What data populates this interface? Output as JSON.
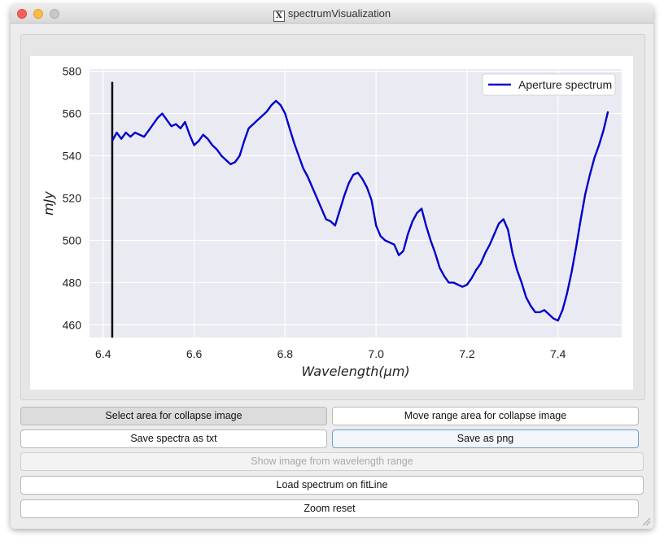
{
  "window": {
    "title": "spectrumVisualization"
  },
  "chart_data": {
    "type": "line",
    "xlabel": "Wavelength(μm)",
    "ylabel": "mJy",
    "xlim": [
      6.37,
      7.54
    ],
    "ylim": [
      454,
      581
    ],
    "xticks": [
      "6.4",
      "6.6",
      "6.8",
      "7.0",
      "7.2",
      "7.4"
    ],
    "yticks": [
      "460",
      "480",
      "500",
      "520",
      "540",
      "560",
      "580"
    ],
    "grid": true,
    "legend": "top-right",
    "series": [
      {
        "name": "Aperture spectrum",
        "color": "#0000cc",
        "x": [
          6.42,
          6.43,
          6.44,
          6.45,
          6.46,
          6.47,
          6.48,
          6.49,
          6.5,
          6.51,
          6.52,
          6.53,
          6.54,
          6.55,
          6.56,
          6.57,
          6.58,
          6.59,
          6.6,
          6.61,
          6.62,
          6.63,
          6.64,
          6.65,
          6.66,
          6.67,
          6.68,
          6.69,
          6.7,
          6.71,
          6.72,
          6.73,
          6.74,
          6.75,
          6.76,
          6.77,
          6.78,
          6.79,
          6.8,
          6.81,
          6.82,
          6.83,
          6.84,
          6.85,
          6.86,
          6.87,
          6.88,
          6.89,
          6.9,
          6.91,
          6.92,
          6.93,
          6.94,
          6.95,
          6.96,
          6.97,
          6.98,
          6.99,
          7.0,
          7.01,
          7.02,
          7.03,
          7.04,
          7.05,
          7.06,
          7.07,
          7.08,
          7.09,
          7.1,
          7.11,
          7.12,
          7.13,
          7.14,
          7.15,
          7.16,
          7.17,
          7.18,
          7.19,
          7.2,
          7.21,
          7.22,
          7.23,
          7.24,
          7.25,
          7.26,
          7.27,
          7.28,
          7.29,
          7.3,
          7.31,
          7.32,
          7.33,
          7.34,
          7.35,
          7.36,
          7.37,
          7.38,
          7.39,
          7.4,
          7.41,
          7.42,
          7.43,
          7.44,
          7.45,
          7.46,
          7.47,
          7.48,
          7.49,
          7.5,
          7.51
        ],
        "values": [
          547,
          551,
          548,
          551,
          549,
          551,
          550,
          549,
          552,
          555,
          558,
          560,
          557,
          554,
          555,
          553,
          556,
          550,
          545,
          547,
          550,
          548,
          545,
          543,
          540,
          538,
          536,
          537,
          540,
          547,
          553,
          555,
          557,
          559,
          561,
          564,
          566,
          564,
          560,
          553,
          546,
          540,
          534,
          530,
          525,
          520,
          515,
          510,
          509,
          507,
          514,
          521,
          527,
          531,
          532,
          529,
          525,
          519,
          507,
          502,
          500,
          499,
          498,
          493,
          495,
          503,
          509,
          513,
          515,
          507,
          500,
          494,
          487,
          483,
          480,
          480,
          479,
          478,
          479,
          482,
          486,
          489,
          494,
          498,
          503,
          508,
          510,
          505,
          494,
          486,
          480,
          473,
          469,
          466,
          466,
          467,
          465,
          463,
          462,
          467,
          475,
          485,
          497,
          510,
          522,
          531,
          539,
          545,
          552,
          561
        ]
      }
    ],
    "annotations": [
      {
        "type": "vertical-line",
        "x": 6.42,
        "ymin": 454,
        "ymax": 575,
        "color": "#000000"
      }
    ]
  },
  "buttons": {
    "select_area": "Select area for collapse image",
    "move_range": "Move range area for collapse image",
    "save_txt": "Save spectra as txt",
    "save_png": "Save as png",
    "show_image": "Show image from wavelength range",
    "load_fitline": "Load spectrum on fitLine",
    "zoom_reset": "Zoom reset"
  }
}
